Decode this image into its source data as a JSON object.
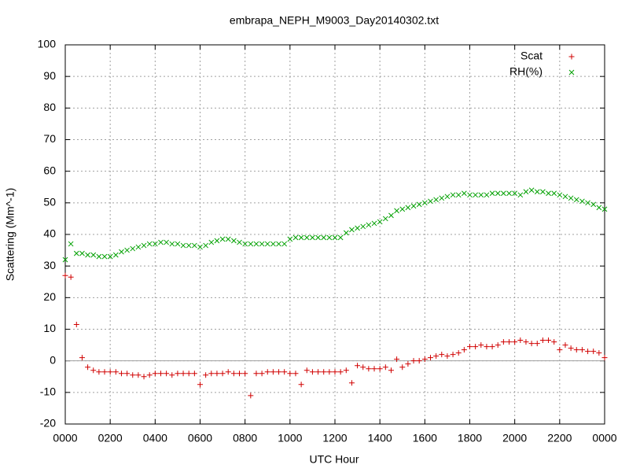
{
  "chart_data": {
    "type": "scatter",
    "title": "embrapa_NEPH_M9003_Day20140302.txt",
    "x_label": "UTC Hour",
    "y_label": "Scattering (Mm^-1)",
    "xlim": [
      0,
      24
    ],
    "ylim": [
      -20,
      100
    ],
    "xticks": [
      {
        "value": 0,
        "label": "0000"
      },
      {
        "value": 2,
        "label": "0200"
      },
      {
        "value": 4,
        "label": "0400"
      },
      {
        "value": 6,
        "label": "0600"
      },
      {
        "value": 8,
        "label": "0800"
      },
      {
        "value": 10,
        "label": "1000"
      },
      {
        "value": 12,
        "label": "1200"
      },
      {
        "value": 14,
        "label": "1400"
      },
      {
        "value": 16,
        "label": "1600"
      },
      {
        "value": 18,
        "label": "1800"
      },
      {
        "value": 20,
        "label": "2000"
      },
      {
        "value": 22,
        "label": "2200"
      },
      {
        "value": 24,
        "label": "0000"
      }
    ],
    "yticks": [
      -20,
      -10,
      0,
      10,
      20,
      30,
      40,
      50,
      60,
      70,
      80,
      90,
      100
    ],
    "grid": true,
    "zeroaxis": true,
    "legend": "top-right",
    "x": [
      0,
      0.25,
      0.5,
      0.75,
      1,
      1.25,
      1.5,
      1.75,
      2,
      2.25,
      2.5,
      2.75,
      3,
      3.25,
      3.5,
      3.75,
      4,
      4.25,
      4.5,
      4.75,
      5,
      5.25,
      5.5,
      5.75,
      6,
      6.25,
      6.5,
      6.75,
      7,
      7.25,
      7.5,
      7.75,
      8,
      8.25,
      8.5,
      8.75,
      9,
      9.25,
      9.5,
      9.75,
      10,
      10.25,
      10.5,
      10.75,
      11,
      11.25,
      11.5,
      11.75,
      12,
      12.25,
      12.5,
      12.75,
      13,
      13.25,
      13.5,
      13.75,
      14,
      14.25,
      14.5,
      14.75,
      15,
      15.25,
      15.5,
      15.75,
      16,
      16.25,
      16.5,
      16.75,
      17,
      17.25,
      17.5,
      17.75,
      18,
      18.25,
      18.5,
      18.75,
      19,
      19.25,
      19.5,
      19.75,
      20,
      20.25,
      20.5,
      20.75,
      21,
      21.25,
      21.5,
      21.75,
      22,
      22.25,
      22.5,
      22.75,
      23,
      23.25,
      23.5,
      23.75,
      24
    ],
    "series": [
      {
        "name": "Scat",
        "color": "#d00000",
        "marker": "plus",
        "values": [
          27,
          26.5,
          11.5,
          1,
          -2,
          -3,
          -3.5,
          -3.5,
          -3.5,
          -3.5,
          -4,
          -4,
          -4.5,
          -4.5,
          -5,
          -4.5,
          -4,
          -4,
          -4,
          -4.5,
          -4,
          -4,
          -4,
          -4,
          -7.5,
          -4.5,
          -4,
          -4,
          -4,
          -3.5,
          -4,
          -4,
          -4,
          -11,
          -4,
          -4,
          -3.5,
          -3.5,
          -3.5,
          -3.5,
          -4,
          -4,
          -7.5,
          -3,
          -3.5,
          -3.5,
          -3.5,
          -3.5,
          -3.5,
          -3.5,
          -3,
          -7,
          -1.5,
          -2,
          -2.5,
          -2.5,
          -2.5,
          -2,
          -3,
          0.5,
          -2,
          -1,
          0,
          0,
          0.5,
          1,
          1.5,
          2,
          1.5,
          2,
          2.5,
          3.5,
          4.5,
          4.5,
          5,
          4.5,
          4.5,
          5,
          6,
          6,
          6,
          6.5,
          6,
          5.5,
          5.5,
          6.5,
          6.5,
          6,
          3.5,
          5,
          4,
          3.5,
          3.5,
          3,
          3,
          2.5,
          1
        ]
      },
      {
        "name": "RH(%)",
        "color": "#00a000",
        "marker": "cross",
        "values": [
          32,
          37,
          34,
          34,
          33.5,
          33.5,
          33,
          33,
          33,
          33.5,
          34.5,
          35,
          35.5,
          36,
          36.5,
          37,
          37,
          37.5,
          37.5,
          37,
          37,
          36.5,
          36.5,
          36.5,
          36,
          36.5,
          37.5,
          38,
          38.5,
          38.5,
          38,
          37.5,
          37,
          37,
          37,
          37,
          37,
          37,
          37,
          37,
          38.5,
          39,
          39,
          39,
          39,
          39,
          39,
          39,
          39,
          39,
          40.5,
          41.5,
          42,
          42.5,
          43,
          43.5,
          44,
          45,
          46,
          47.5,
          48,
          48.5,
          49,
          49.5,
          50,
          50.5,
          51,
          51.5,
          52,
          52.5,
          52.5,
          53,
          52.5,
          52.5,
          52.5,
          52.5,
          53,
          53,
          53,
          53,
          53,
          52.5,
          53.5,
          54,
          53.5,
          53.5,
          53,
          53,
          52.5,
          52,
          51.5,
          51,
          50.5,
          50,
          49.5,
          48.5,
          48
        ]
      }
    ]
  }
}
